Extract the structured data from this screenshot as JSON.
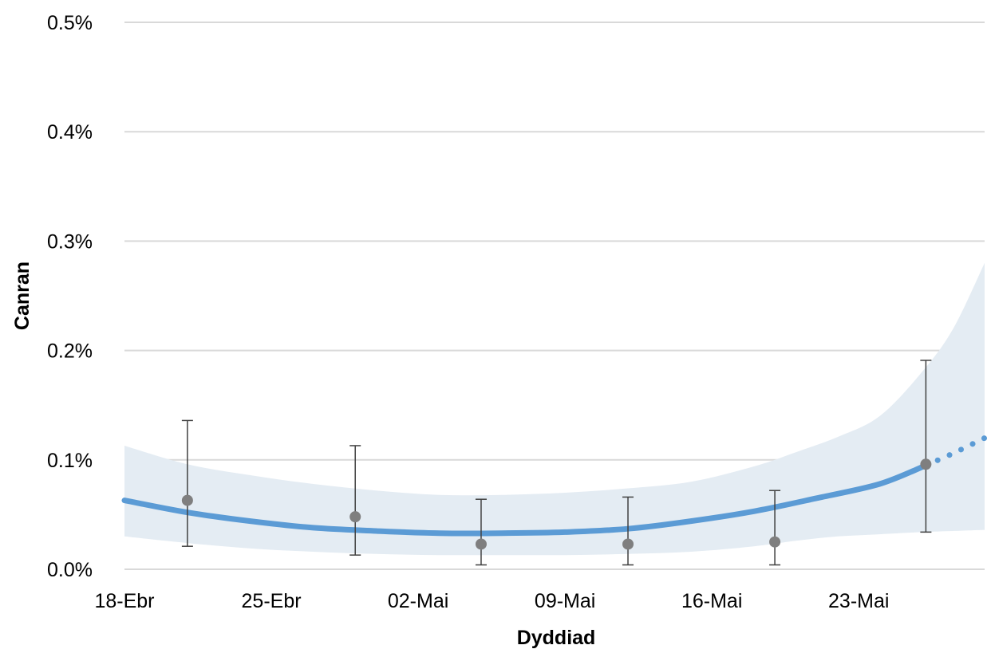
{
  "chart_data": {
    "type": "line",
    "xlabel": "Dyddiad",
    "ylabel": "Canran",
    "x_ticks": [
      "18-Ebr",
      "25-Ebr",
      "02-Mai",
      "09-Mai",
      "16-Mai",
      "23-Mai"
    ],
    "x_tick_days": [
      0,
      7,
      14,
      21,
      28,
      35
    ],
    "xlim_days": [
      0,
      41
    ],
    "y_ticks": [
      "0.0%",
      "0.1%",
      "0.2%",
      "0.3%",
      "0.4%",
      "0.5%"
    ],
    "ylim": [
      0,
      0.5
    ],
    "grid": true,
    "colors": {
      "trend": "#5b9bd5",
      "band": "#e4ecf3",
      "points": "#7f7f7f",
      "grid": "#d9d9d9",
      "error_bars": "#404040"
    },
    "trend": {
      "x": [
        0,
        3,
        6,
        9,
        12,
        15,
        18,
        21,
        24,
        27,
        30,
        33,
        36,
        38.2
      ],
      "y": [
        0.063,
        0.052,
        0.044,
        0.038,
        0.035,
        0.033,
        0.033,
        0.034,
        0.037,
        0.044,
        0.053,
        0.065,
        0.078,
        0.095
      ]
    },
    "projection": {
      "x": [
        38.2,
        39.5,
        41
      ],
      "y": [
        0.095,
        0.106,
        0.12
      ]
    },
    "band": {
      "x": [
        0,
        3,
        6,
        9,
        12,
        15,
        18,
        21,
        24,
        27,
        30,
        32,
        34,
        36,
        38,
        39.5,
        41
      ],
      "upper": [
        0.113,
        0.096,
        0.086,
        0.078,
        0.072,
        0.068,
        0.068,
        0.07,
        0.074,
        0.08,
        0.094,
        0.107,
        0.121,
        0.14,
        0.18,
        0.22,
        0.28
      ],
      "lower": [
        0.03,
        0.024,
        0.019,
        0.016,
        0.014,
        0.013,
        0.013,
        0.013,
        0.014,
        0.016,
        0.021,
        0.026,
        0.03,
        0.032,
        0.034,
        0.035,
        0.036
      ]
    },
    "points": [
      {
        "x": 3.0,
        "y": 0.063,
        "low": 0.021,
        "high": 0.136
      },
      {
        "x": 11.0,
        "y": 0.048,
        "low": 0.013,
        "high": 0.113
      },
      {
        "x": 17.0,
        "y": 0.023,
        "low": 0.004,
        "high": 0.064
      },
      {
        "x": 24.0,
        "y": 0.023,
        "low": 0.004,
        "high": 0.066
      },
      {
        "x": 31.0,
        "y": 0.025,
        "low": 0.004,
        "high": 0.072
      },
      {
        "x": 38.2,
        "y": 0.096,
        "low": 0.034,
        "high": 0.191
      }
    ]
  }
}
